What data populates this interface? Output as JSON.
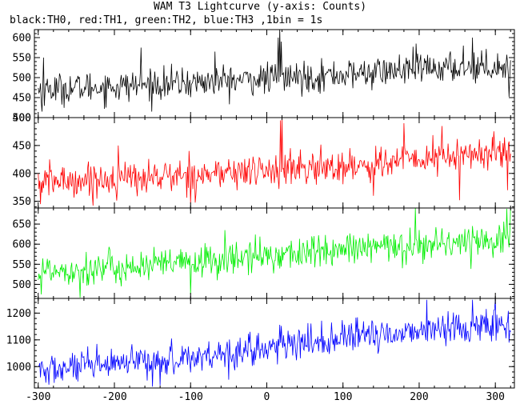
{
  "title": "WAM T3 Lightcurve (y-axis: Counts)",
  "subtitle": "black:TH0, red:TH1, green:TH2, blue:TH3 ,1bin = 1s",
  "chart_data": {
    "type": "line",
    "x_range": [
      -305,
      325
    ],
    "x_ticks": [
      -300,
      -200,
      -100,
      0,
      100,
      200,
      300
    ],
    "bin_seconds": 1,
    "panels": [
      {
        "name": "TH0",
        "color": "#000000",
        "ylim": [
          400,
          620
        ],
        "y_ticks": [
          400,
          450,
          500,
          550,
          600
        ],
        "trend": [
          [
            -300,
            470
          ],
          [
            -200,
            478
          ],
          [
            -100,
            487
          ],
          [
            0,
            497
          ],
          [
            100,
            507
          ],
          [
            200,
            521
          ],
          [
            320,
            530
          ]
        ],
        "spikes": [
          [
            -295,
            415
          ],
          [
            -293,
            550
          ],
          [
            15,
            600
          ],
          [
            17,
            625
          ],
          [
            19,
            590
          ],
          [
            -165,
            575
          ],
          [
            -68,
            565
          ],
          [
            196,
            585
          ],
          [
            258,
            580
          ],
          [
            270,
            600
          ],
          [
            318,
            452
          ]
        ],
        "noise": 35
      },
      {
        "name": "TH1",
        "color": "#ff0000",
        "ylim": [
          338,
          500
        ],
        "y_ticks": [
          350,
          400,
          450,
          500
        ],
        "trend": [
          [
            -300,
            385
          ],
          [
            -200,
            390
          ],
          [
            -100,
            397
          ],
          [
            0,
            405
          ],
          [
            100,
            412
          ],
          [
            200,
            425
          ],
          [
            320,
            440
          ]
        ],
        "spikes": [
          [
            -297,
            345
          ],
          [
            18,
            495
          ],
          [
            20,
            500
          ],
          [
            -195,
            450
          ],
          [
            180,
            490
          ],
          [
            230,
            485
          ],
          [
            253,
            352
          ],
          [
            140,
            360
          ],
          [
            316,
            370
          ]
        ],
        "noise": 28
      },
      {
        "name": "TH2",
        "color": "#00ee00",
        "ylim": [
          465,
          690
        ],
        "y_ticks": [
          500,
          550,
          600,
          650
        ],
        "trend": [
          [
            -300,
            535
          ],
          [
            -200,
            540
          ],
          [
            -100,
            553
          ],
          [
            0,
            572
          ],
          [
            100,
            585
          ],
          [
            200,
            598
          ],
          [
            320,
            615
          ]
        ],
        "spikes": [
          [
            -296,
            475
          ],
          [
            -245,
            467
          ],
          [
            -100,
            475
          ],
          [
            195,
            690
          ],
          [
            315,
            688
          ],
          [
            320,
            690
          ],
          [
            -55,
            635
          ]
        ],
        "noise": 38
      },
      {
        "name": "TH3",
        "color": "#0000ff",
        "ylim": [
          920,
          1255
        ],
        "y_ticks": [
          1000,
          1100,
          1200
        ],
        "trend": [
          [
            -300,
            985
          ],
          [
            -200,
            1005
          ],
          [
            -100,
            1035
          ],
          [
            0,
            1070
          ],
          [
            100,
            1105
          ],
          [
            200,
            1135
          ],
          [
            320,
            1160
          ]
        ],
        "spikes": [
          [
            -290,
            940
          ],
          [
            -150,
            925
          ],
          [
            -140,
            930
          ],
          [
            210,
            1250
          ],
          [
            270,
            1250
          ],
          [
            300,
            1255
          ],
          [
            318,
            1090
          ]
        ],
        "noise": 55
      }
    ]
  }
}
